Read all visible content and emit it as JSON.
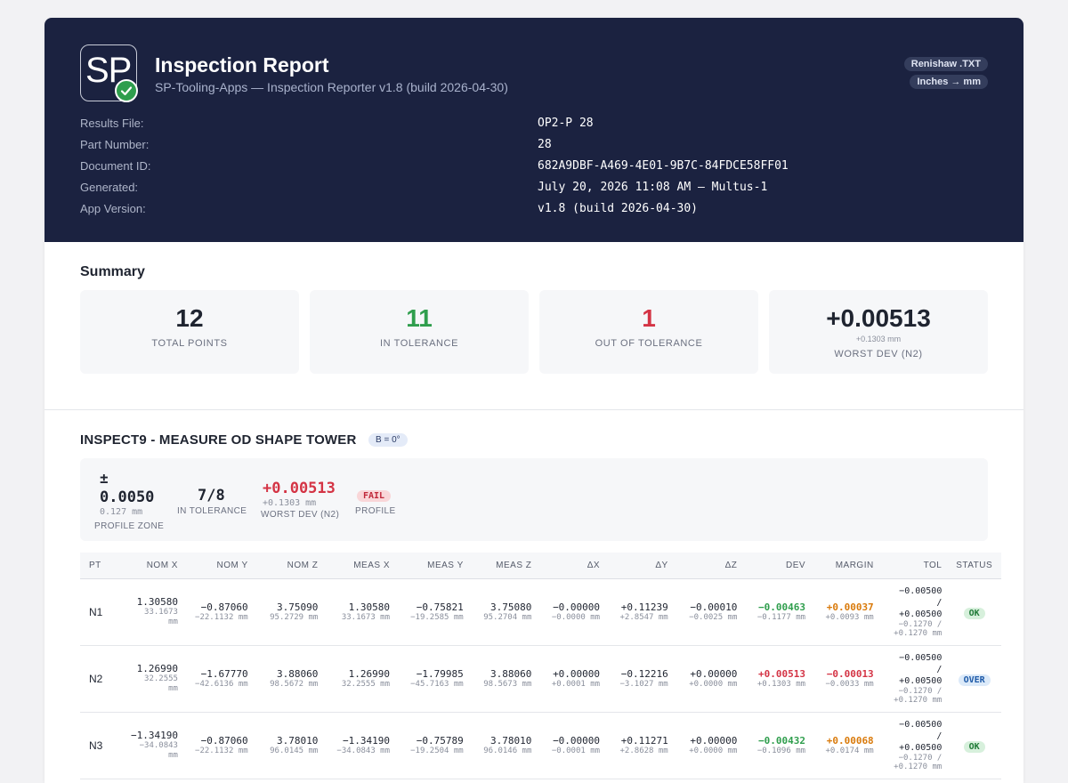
{
  "colors": {
    "header_bg": "#1b2240",
    "green": "#2f9e4d",
    "red": "#d43445",
    "orange": "#d97a0b",
    "ok_bg": "#d7f0dc",
    "ok_text": "#1e7a36",
    "over_bg": "#dceaf9",
    "over_text": "#1e5aa8",
    "fail_bg": "#f9d6d8",
    "fail_text": "#c0283a"
  },
  "header": {
    "logo_text": "SP",
    "logo_icon": "check-circle-icon",
    "title": "Inspection Report",
    "subtitle": "SP-Tooling-Apps — Inspection Reporter v1.8 (build 2026-04-30)",
    "badges": [
      "Renishaw .TXT",
      "Inches → mm"
    ],
    "meta": [
      {
        "label": "Results File:",
        "value": "OP2-P 28"
      },
      {
        "label": "Part Number:",
        "value": "28"
      },
      {
        "label": "Document ID:",
        "value": "682A9DBF-A469-4E01-9B7C-84FDCE58FF01"
      },
      {
        "label": "Generated:",
        "value": "July 20, 2026 11:08 AM — Multus-1"
      },
      {
        "label": "App Version:",
        "value": "v1.8 (build 2026-04-30)"
      }
    ]
  },
  "summary": {
    "title": "Summary",
    "total_points": {
      "value": "12",
      "label": "TOTAL POINTS"
    },
    "in_tolerance": {
      "value": "11",
      "label": "IN TOLERANCE"
    },
    "out_tolerance": {
      "value": "1",
      "label": "OUT OF TOLERANCE"
    },
    "worst_dev": {
      "value": "+0.00513",
      "sub": "+0.1303 mm",
      "label": "WORST DEV (N2)"
    }
  },
  "inspection": {
    "title": "INSPECT9 - MEASURE OD SHAPE TOWER",
    "angle": "B = 0°",
    "zone_pm": "±",
    "zone_value": "0.0050",
    "zone_mm": "0.127 mm",
    "zone_label": "PROFILE ZONE",
    "in_tol_value": "7/8",
    "in_tol_label": "IN TOLERANCE",
    "worst_value": "+0.00513",
    "worst_mm": "+0.1303 mm",
    "worst_label": "WORST DEV (N2)",
    "result": "FAIL",
    "result_label": "PROFILE"
  },
  "table": {
    "headers": [
      "PT",
      "NOM X",
      "NOM Y",
      "NOM Z",
      "MEAS X",
      "MEAS Y",
      "MEAS Z",
      "ΔX",
      "ΔY",
      "ΔZ",
      "DEV",
      "MARGIN",
      "TOL",
      "STATUS"
    ],
    "rows": [
      {
        "pt": "N1",
        "cells": [
          [
            "1.30580",
            "33.1673 mm"
          ],
          [
            "−0.87060",
            "−22.1132 mm"
          ],
          [
            "3.75090",
            "95.2729 mm"
          ],
          [
            "1.30580",
            "33.1673 mm"
          ],
          [
            "−0.75821",
            "−19.2585 mm"
          ],
          [
            "3.75080",
            "95.2704 mm"
          ],
          [
            "−0.00000",
            "−0.0000 mm"
          ],
          [
            "+0.11239",
            "+2.8547 mm"
          ],
          [
            "−0.00010",
            "−0.0025 mm"
          ]
        ],
        "dev": "−0.00463",
        "dev_mm": "−0.1177 mm",
        "margin": "+0.00037",
        "margin_mm": "+0.0093 mm",
        "tol_lo": "−0.00500",
        "tol_sep": "/",
        "tol_hi": "+0.00500",
        "tol_mm_lo": "−0.1270 /",
        "tol_mm_hi": "+0.1270 mm",
        "status": "OK"
      },
      {
        "pt": "N2",
        "cells": [
          [
            "1.26990",
            "32.2555 mm"
          ],
          [
            "−1.67770",
            "−42.6136 mm"
          ],
          [
            "3.88060",
            "98.5672 mm"
          ],
          [
            "1.26990",
            "32.2555 mm"
          ],
          [
            "−1.79985",
            "−45.7163 mm"
          ],
          [
            "3.88060",
            "98.5673 mm"
          ],
          [
            "+0.00000",
            "+0.0001 mm"
          ],
          [
            "−0.12216",
            "−3.1027 mm"
          ],
          [
            "+0.00000",
            "+0.0000 mm"
          ]
        ],
        "dev": "+0.00513",
        "dev_mm": "+0.1303 mm",
        "margin": "−0.00013",
        "margin_mm": "−0.0033 mm",
        "tol_lo": "−0.00500",
        "tol_sep": "/",
        "tol_hi": "+0.00500",
        "tol_mm_lo": "−0.1270 /",
        "tol_mm_hi": "+0.1270 mm",
        "status": "OVER"
      },
      {
        "pt": "N3",
        "cells": [
          [
            "−1.34190",
            "−34.0843 mm"
          ],
          [
            "−0.87060",
            "−22.1132 mm"
          ],
          [
            "3.78010",
            "96.0145 mm"
          ],
          [
            "−1.34190",
            "−34.0843 mm"
          ],
          [
            "−0.75789",
            "−19.2504 mm"
          ],
          [
            "3.78010",
            "96.0146 mm"
          ],
          [
            "−0.00000",
            "−0.0001 mm"
          ],
          [
            "+0.11271",
            "+2.8628 mm"
          ],
          [
            "+0.00000",
            "+0.0000 mm"
          ]
        ],
        "dev": "−0.00432",
        "dev_mm": "−0.1096 mm",
        "margin": "+0.00068",
        "margin_mm": "+0.0174 mm",
        "tol_lo": "−0.00500",
        "tol_sep": "/",
        "tol_hi": "+0.00500",
        "tol_mm_lo": "−0.1270 /",
        "tol_mm_hi": "+0.1270 mm",
        "status": "OK"
      }
    ]
  }
}
